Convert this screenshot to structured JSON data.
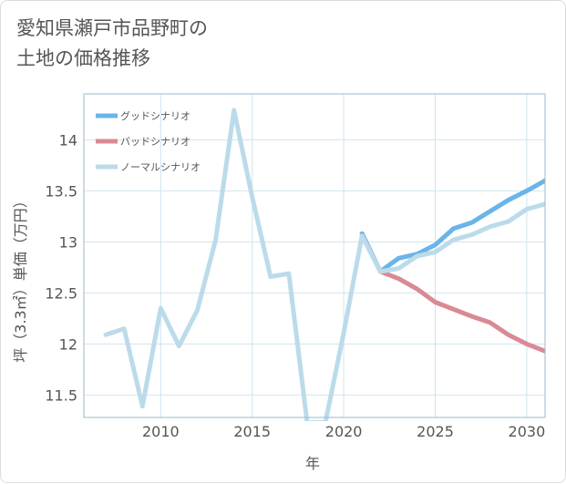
{
  "title_lines": [
    "愛知県瀬戸市品野町の",
    "土地の価格推移"
  ],
  "colors": {
    "good": "#6ab4ea",
    "bad": "#d98a94",
    "normal": "#bcdbea",
    "grid": "#cfe4ee",
    "plot_border": "#9eb9c8",
    "text": "#555555"
  },
  "chart_data": {
    "type": "line",
    "title": "愛知県瀬戸市品野町の土地の価格推移",
    "xlabel": "年",
    "ylabel": "坪（3.3㎡）単価（万円）",
    "xlim": [
      2005.8,
      2031
    ],
    "ylim": [
      11.28,
      14.45
    ],
    "x_ticks": [
      2010,
      2015,
      2020,
      2025,
      2030
    ],
    "y_ticks": [
      11.5,
      12,
      12.5,
      13,
      13.5,
      14
    ],
    "grid": true,
    "legend_position": "top-left",
    "series": [
      {
        "name": "グッドシナリオ",
        "color": "#6ab4ea",
        "x": [
          2021,
          2022,
          2023,
          2024,
          2025,
          2026,
          2027,
          2028,
          2029,
          2030,
          2031
        ],
        "y": [
          13.08,
          12.71,
          12.84,
          12.88,
          12.97,
          13.13,
          13.19,
          13.3,
          13.41,
          13.5,
          13.6
        ]
      },
      {
        "name": "バッドシナリオ",
        "color": "#d98a94",
        "x": [
          2021,
          2022,
          2023,
          2024,
          2025,
          2026,
          2027,
          2028,
          2029,
          2030,
          2031
        ],
        "y": [
          13.08,
          12.71,
          12.64,
          12.54,
          12.41,
          12.34,
          12.27,
          12.21,
          12.09,
          12.0,
          11.93
        ]
      },
      {
        "name": "ノーマルシナリオ",
        "color": "#bcdbea",
        "x": [
          2007,
          2008,
          2009,
          2010,
          2011,
          2012,
          2013,
          2014,
          2015,
          2016,
          2017,
          2018,
          2019,
          2020,
          2021,
          2022,
          2023,
          2024,
          2025,
          2026,
          2027,
          2028,
          2029,
          2030,
          2031
        ],
        "y": [
          12.09,
          12.15,
          11.39,
          12.35,
          11.98,
          12.33,
          13.02,
          14.29,
          13.44,
          12.66,
          12.69,
          11.23,
          11.23,
          12.11,
          13.06,
          12.71,
          12.74,
          12.86,
          12.9,
          13.02,
          13.07,
          13.15,
          13.2,
          13.32,
          13.37
        ]
      }
    ]
  }
}
